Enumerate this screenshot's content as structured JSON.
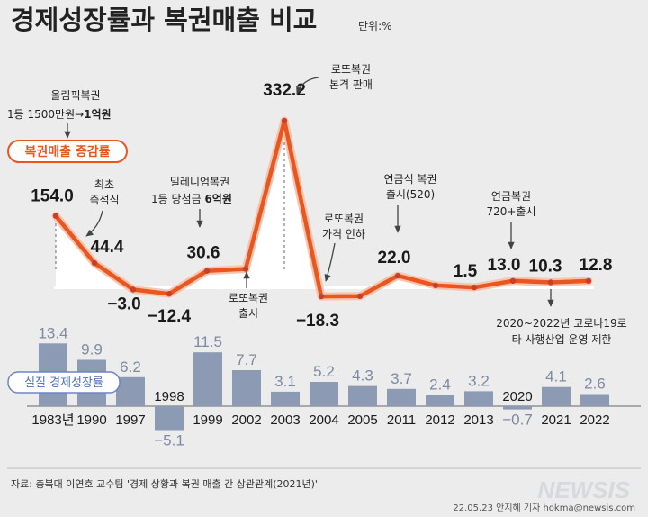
{
  "header": {
    "title": "경제성장률과 복권매출 비교",
    "unit": "단위:%"
  },
  "legend": {
    "lottery_label": "복권매출 증감률",
    "gdp_label": "실질 경제성장률"
  },
  "chart_data": {
    "type": "line+bar",
    "categories": [
      "1983년",
      "1990",
      "1997",
      "1998",
      "1999",
      "2002",
      "2003",
      "2004",
      "2005",
      "2011",
      "2012",
      "2013",
      "2020",
      "2021",
      "2022"
    ],
    "series": [
      {
        "name": "복권매출 증감률",
        "type": "line",
        "values": [
          154.0,
          44.4,
          -3.0,
          -12.4,
          30.6,
          34.0,
          332.2,
          -18.3,
          -17.5,
          22.0,
          5.0,
          1.5,
          13.0,
          10.3,
          12.8
        ],
        "value_labels": [
          "154.0",
          "44.4",
          "−3.0",
          "−12.4",
          "30.6",
          "",
          "332.2",
          "−18.3",
          "",
          "22.0",
          "",
          "1.5",
          "13.0",
          "10.3",
          "12.8"
        ]
      },
      {
        "name": "실질 경제성장률",
        "type": "bar",
        "values": [
          13.4,
          9.9,
          6.2,
          -5.1,
          11.5,
          7.7,
          3.1,
          5.2,
          4.3,
          3.7,
          2.4,
          3.2,
          -0.7,
          4.1,
          2.6
        ],
        "value_labels": [
          "13.4",
          "9.9",
          "6.2",
          "−5.1",
          "11.5",
          "7.7",
          "3.1",
          "5.2",
          "4.3",
          "3.7",
          "2.4",
          "3.2",
          "−0.7",
          "4.1",
          "2.6"
        ]
      }
    ],
    "line_colors": {
      "line": "#e8571f",
      "line_outer": "#f8c4ad",
      "dot": "#c8402a",
      "bar": "#8d9ab3",
      "bar_value": "#7d8aa3"
    }
  },
  "annotations": {
    "olympic_lottery": [
      "올림픽복권",
      "1등 1500만원→",
      "1억원"
    ],
    "instant_lottery": [
      "최초",
      "즉석식"
    ],
    "millennium_lottery": [
      "밀레니엄복권",
      "1등 당첨금 ",
      "6억원"
    ],
    "lotto_launch": [
      "로또복권",
      "출시"
    ],
    "lotto_full": [
      "로또복권",
      "본격 판매"
    ],
    "lotto_price_cut": [
      "로또복권",
      "가격 인하"
    ],
    "pension_520": [
      "연금식 복권",
      "출시(520)"
    ],
    "pension_720": [
      "연금복권",
      "720+출시"
    ],
    "corona": [
      "2020~2022년 코로나19로",
      "타 사행산업 운영 제한"
    ]
  },
  "footer": {
    "source": "자료: 충북대 이연호 교수팀 '경제 상황과 복권 매출 간 상관관계(2021년)'",
    "credit": "22.05.23 안지혜 기자  hokma@newsis.com",
    "watermark": "NEWSIS"
  }
}
